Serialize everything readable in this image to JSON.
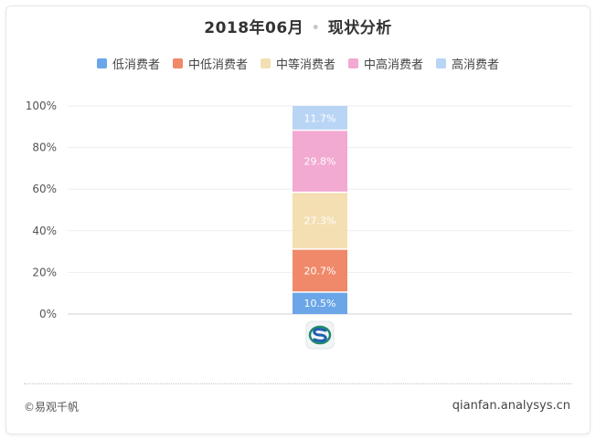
{
  "title_left": "2018年06月",
  "title_sep": "•",
  "title_right": "现状分析",
  "footer": {
    "left": "©易观千帆",
    "right": "qianfan.analysys.cn"
  },
  "chart_data": {
    "type": "bar",
    "stacked": true,
    "percent": true,
    "categories": [
      ""
    ],
    "category_icon": "app-logo-icon",
    "series": [
      {
        "name": "低消费者",
        "values": [
          10.5
        ],
        "label": "10.5%",
        "color": "#6aa6e8"
      },
      {
        "name": "中低消费者",
        "values": [
          20.7
        ],
        "label": "20.7%",
        "color": "#f0896a"
      },
      {
        "name": "中等消费者",
        "values": [
          27.3
        ],
        "label": "27.3%",
        "color": "#f4dfb3"
      },
      {
        "name": "中高消费者",
        "values": [
          29.8
        ],
        "label": "29.8%",
        "color": "#f2a9d2"
      },
      {
        "name": "高消费者",
        "values": [
          11.7
        ],
        "label": "11.7%",
        "color": "#b9d5f6"
      }
    ],
    "yticks": [
      "0%",
      "20%",
      "40%",
      "60%",
      "80%",
      "100%"
    ],
    "ylim": [
      0,
      100
    ],
    "grid": true,
    "legend": "top-center"
  }
}
